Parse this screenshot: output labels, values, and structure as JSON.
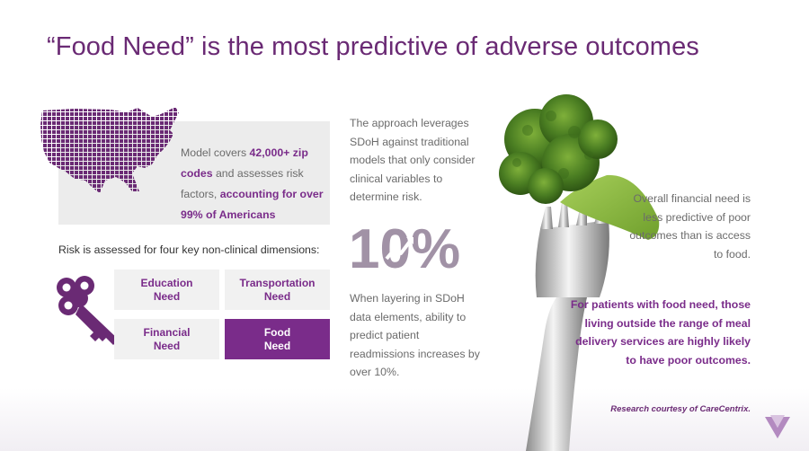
{
  "title": "“Food Need” is the most predictive of adverse outcomes",
  "map_panel": {
    "text_1": "Model covers ",
    "highlight_1": "42,000+ zip codes",
    "text_2": " and assesses risk factors, ",
    "highlight_2": "accounting for over 99% of Americans"
  },
  "dimensions_label": "Risk is assessed for four key non-clinical dimensions:",
  "dimensions": [
    {
      "line1": "Education",
      "line2": "Need",
      "active": false
    },
    {
      "line1": "Transportation",
      "line2": "Need",
      "active": false
    },
    {
      "line1": "Financial",
      "line2": "Need",
      "active": false
    },
    {
      "line1": "Food",
      "line2": "Need",
      "active": true
    }
  ],
  "middle": {
    "top_text": "The approach leverages SDoH against traditional models that only consider clinical variables to determine risk.",
    "percent_text": "10%",
    "bottom_text": "When layering in SDoH data elements, ability to predict patient readmissions increases by over 10%."
  },
  "right": {
    "top_text": "Overall financial need is less predictive of poor outcomes than is access to food.",
    "bottom_text": "For patients with food need, those living outside the range of meal delivery services are highly likely to have poor outcomes."
  },
  "credit": "Research courtesy of CareCentrix.",
  "colors": {
    "brand_purple": "#7a2c8a",
    "title_purple": "#6a2a74",
    "percent_gray": "#a192a6",
    "panel_gray": "#ececec"
  },
  "icons": [
    "us-map-icon",
    "key-icon",
    "trend-arrow-icon",
    "broccoli-fork-icon",
    "brand-logo-icon"
  ]
}
